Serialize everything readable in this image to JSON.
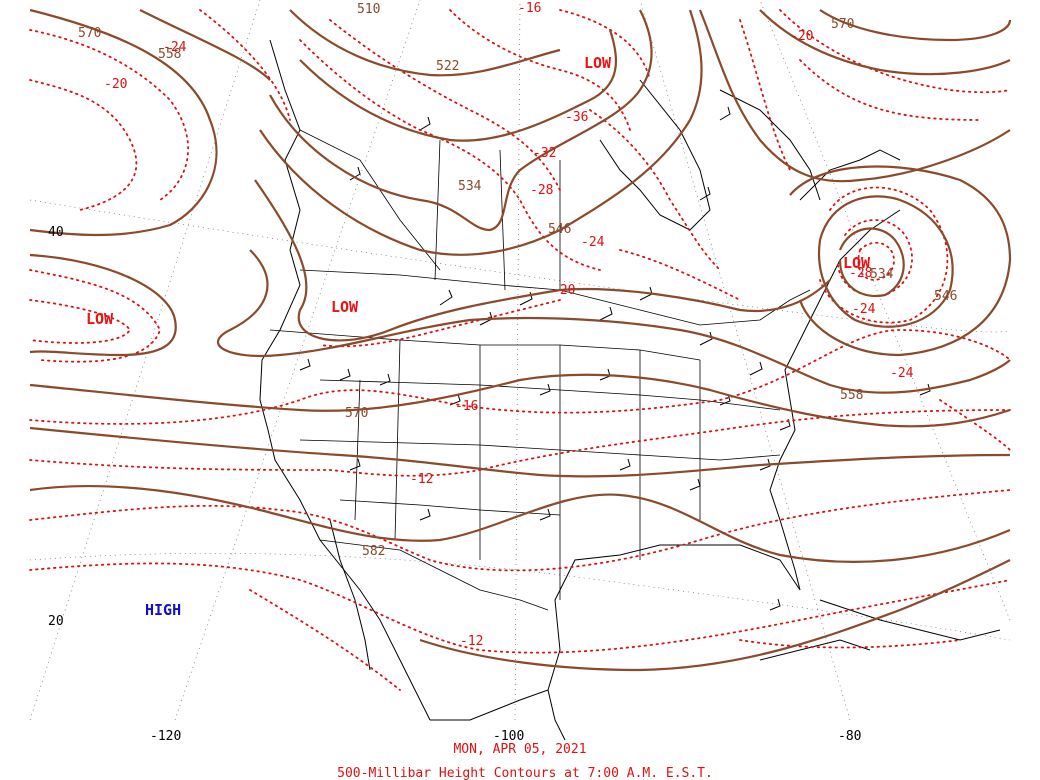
{
  "map": {
    "title_date": "MON, APR 05, 2021",
    "title_product": "500-Millibar Height Contours at 7:00 A.M. E.S.T.",
    "colors": {
      "height_contour": "#8b4a2b",
      "temperature_contour": "#dd1111",
      "low_label": "#ee1111",
      "high_label": "#1111cc"
    },
    "longitude_labels": [
      "-120",
      "-100",
      "-80"
    ],
    "latitude_labels": [
      "40",
      "20"
    ],
    "height_labels": [
      "570",
      "558",
      "510",
      "522",
      "534",
      "546",
      "534",
      "546",
      "558",
      "570",
      "582",
      "570"
    ],
    "temperature_labels": [
      "-24",
      "-20",
      "-16",
      "-36",
      "-32",
      "-28",
      "-24",
      "-20",
      "-20",
      "-24",
      "-24",
      "-28",
      "-16",
      "-12",
      "-12"
    ],
    "pressure_centers": [
      {
        "type": "low",
        "label": "LOW"
      },
      {
        "type": "low",
        "label": "LOW"
      },
      {
        "type": "low",
        "label": "LOW"
      },
      {
        "type": "low",
        "label": "LOW"
      },
      {
        "type": "high",
        "label": "HIGH"
      }
    ]
  }
}
